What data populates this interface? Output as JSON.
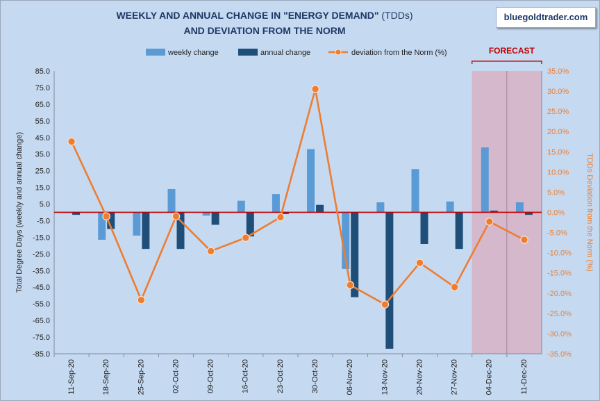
{
  "chart_data": {
    "type": "bar",
    "title_main": "WEEKLY  AND ANNUAL CHANGE IN \"ENERGY DEMAND\"",
    "title_suffix": " (TDDs)",
    "subtitle": "AND DEVIATION FROM THE NORM",
    "brand": "bluegoldtrader.com",
    "forecast_label": "FORECAST",
    "ylabel_left": "Total Degree  Days (weekly and annual change)",
    "ylabel_right": "TDDs Deviation from the Norm (%)",
    "categories": [
      "11-Sep-20",
      "18-Sep-20",
      "25-Sep-20",
      "02-Oct-20",
      "09-Oct-20",
      "16-Oct-20",
      "23-Oct-20",
      "30-Oct-20",
      "06-Nov-20",
      "13-Nov-20",
      "20-Nov-20",
      "27-Nov-20",
      "04-Dec-20",
      "11-Dec-20"
    ],
    "forecast_categories": [
      "04-Dec-20",
      "11-Dec-20"
    ],
    "y_left": {
      "min": -85,
      "max": 85,
      "step": 10,
      "tick_labels": [
        "85.0",
        "75.0",
        "65.0",
        "55.0",
        "45.0",
        "35.0",
        "25.0",
        "15.0",
        "5.0",
        "-5.0",
        "-15.0",
        "-25.0",
        "-35.0",
        "-45.0",
        "-55.0",
        "-65.0",
        "-75.0",
        "-85.0"
      ]
    },
    "y_right": {
      "min": -35,
      "max": 35,
      "step": 5,
      "tick_labels": [
        "35.0%",
        "30.0%",
        "25.0%",
        "20.0%",
        "15.0%",
        "10.0%",
        "5.0%",
        "0.0%",
        "-5.0%",
        "-10.0%",
        "-15.0%",
        "-20.0%",
        "-25.0%",
        "-30.0%",
        "-35.0%"
      ]
    },
    "series": [
      {
        "name": "weekly change",
        "type": "bar",
        "axis": "left",
        "color": "#5b9bd5",
        "values": [
          -0.5,
          -16.5,
          -14,
          14,
          -2,
          7,
          11,
          38,
          -34,
          6,
          26,
          6.5,
          39,
          6
        ]
      },
      {
        "name": "annual change",
        "type": "bar",
        "axis": "left",
        "color": "#1f4e79",
        "values": [
          -1.5,
          -10,
          -22,
          -22,
          -7.5,
          -14.5,
          -1,
          4.5,
          -51,
          -82,
          -19,
          -22,
          1,
          -1.5
        ]
      },
      {
        "name": "deviation from the Norm (%)",
        "type": "line",
        "axis": "right",
        "color": "#ed7d31",
        "values": [
          17.5,
          -1,
          -21.7,
          -1,
          -9.6,
          -6.3,
          -1.2,
          30.5,
          -18,
          -22.8,
          -12.5,
          -18.5,
          -2.3,
          -6.8
        ]
      }
    ],
    "zero_line_color": "#c00000",
    "forecast_shade_color": "#d8b2c6",
    "forecast_bracket_color": "#c00000",
    "grid": false,
    "legend_position": "top"
  }
}
